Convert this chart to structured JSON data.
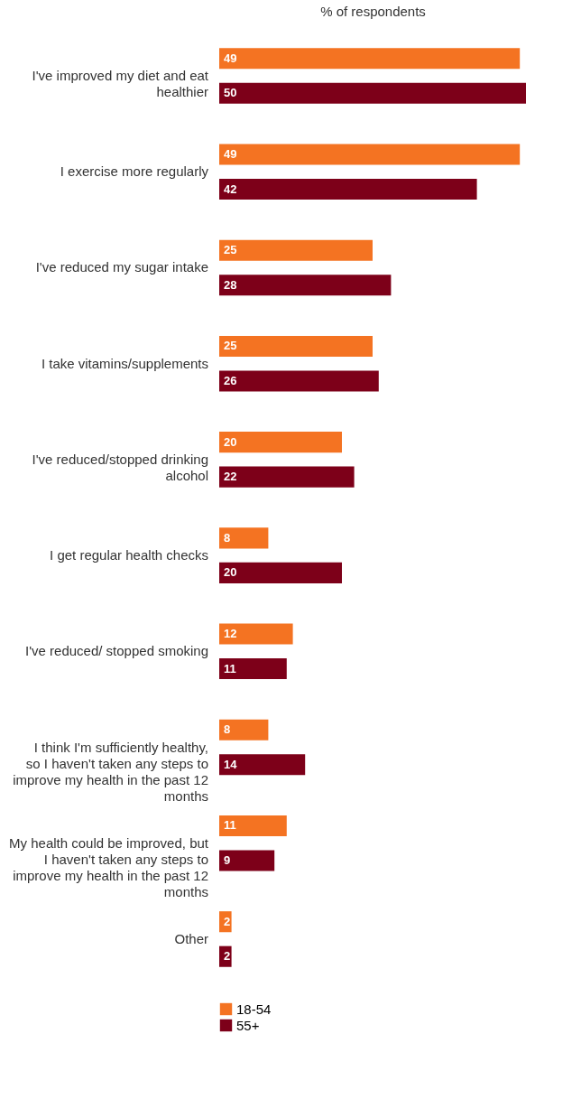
{
  "chart_data": {
    "type": "bar",
    "orientation": "horizontal",
    "xlabel": "% of respondents",
    "categories": [
      "I've improved my diet and eat healthier",
      "I exercise more regularly",
      "I've reduced my sugar intake",
      "I take vitamins/supplements",
      "I've reduced/stopped drinking alcohol",
      "I get regular health checks",
      "I've reduced/ stopped smoking",
      "I think I'm sufficiently healthy, so I haven't taken any steps to improve my health in the past 12 months",
      "My health could be improved, but I haven't taken any steps to improve my health in the past 12 months",
      "Other"
    ],
    "series": [
      {
        "name": "18-54",
        "color": "#f47322",
        "values": [
          49,
          49,
          25,
          25,
          20,
          8,
          12,
          8,
          11,
          2
        ]
      },
      {
        "name": "55+",
        "color": "#7d0019",
        "values": [
          50,
          42,
          28,
          26,
          22,
          20,
          11,
          14,
          9,
          2
        ]
      }
    ],
    "data_labels": true,
    "legend": "bottom",
    "tick_labels": "y",
    "grid": false
  }
}
